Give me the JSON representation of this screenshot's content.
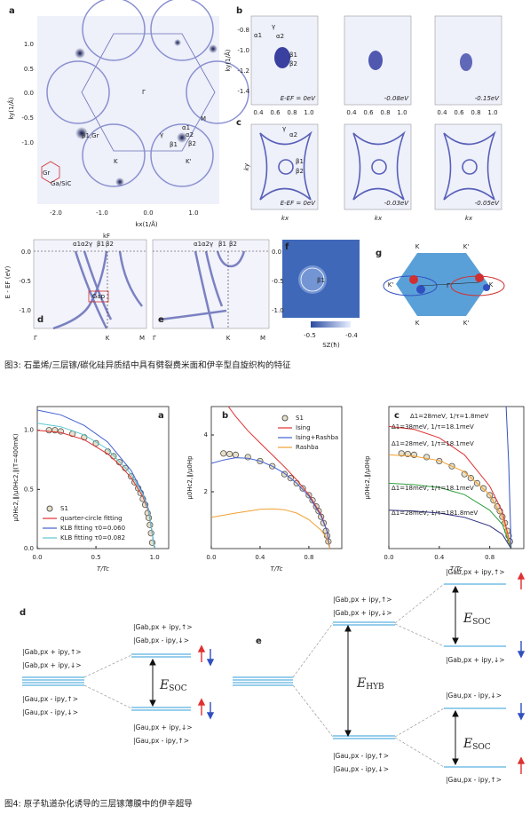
{
  "figure3": {
    "panel_a": {
      "label": "a",
      "ylabel": "ky(1/Å)",
      "xlabel": "kx(1/Å)",
      "yticks": [
        "1.0",
        "0.5",
        "0.0",
        "-0.5",
        "-1.0"
      ],
      "xticks": [
        "-2.0",
        "-1.0",
        "0.0",
        "1.0"
      ],
      "annotations": [
        "Γ",
        "M",
        "K",
        "K'",
        "α1",
        "α2",
        "γ",
        "β1",
        "β2",
        "β1,Gr",
        "Gr",
        "Ga/SiC"
      ]
    },
    "panel_b": {
      "label": "b",
      "ylabel": "ky(1/Å)",
      "yticks": [
        "-0.8",
        "-1.0",
        "-1.2",
        "-1.4"
      ],
      "xticks": [
        "0.4",
        "0.6",
        "0.8",
        "1.0"
      ],
      "energies": [
        "E-EF = 0eV",
        "-0.08eV",
        "-0.15eV"
      ],
      "annotations": [
        "γ",
        "α1",
        "α2",
        "β1",
        "β2"
      ]
    },
    "panel_c": {
      "label": "c",
      "ylabel": "ky",
      "xlabel": "kx",
      "energies": [
        "E-EF = 0eV",
        "-0.03eV",
        "-0.05eV"
      ],
      "annotations": [
        "γ",
        "α2",
        "β1",
        "β2"
      ]
    },
    "panel_d": {
      "label": "d",
      "ylabel": "E - EF (eV)",
      "yticks": [
        "0.0",
        "-0.5",
        "-1.0"
      ],
      "xticks": [
        "Γ",
        "K",
        "M"
      ],
      "kf": "kF",
      "bands": [
        "α1",
        "α2",
        "γ",
        "β1",
        "β2"
      ],
      "gap": "Gap"
    },
    "panel_e": {
      "label": "e",
      "yticks": [
        "0.0",
        "-0.5",
        "-1.0"
      ],
      "xticks": [
        "Γ",
        "K",
        "M"
      ],
      "bands": [
        "α1",
        "α2",
        "γ",
        "β1",
        "β2"
      ]
    },
    "panel_f": {
      "label": "f",
      "annotation": "β1",
      "colorbar_ticks": [
        "-0.5",
        "-0.4"
      ],
      "colorbar_label": "SZ(ħ)"
    },
    "panel_g": {
      "label": "g",
      "points": [
        "K",
        "K'",
        "K'",
        "Γ",
        "K",
        "K",
        "K'"
      ]
    },
    "caption": "图3: 石墨烯/三层镓/碳化硅异质结中具有劈裂费米面和伊辛型自旋织构的特征"
  },
  "figure4": {
    "charts": [
      {
        "type": "line",
        "label": "a",
        "xlabel": "T/Tc",
        "ylabel": "μ0Hc2,∥/μ0Hc2,∥(T=400mK)",
        "xlim": [
          0,
          1.12
        ],
        "ylim": [
          0,
          1.2
        ],
        "xticks": [
          {
            "value": 0,
            "label": "0.0"
          },
          0.5,
          {
            "value": 1,
            "label": "1.0"
          }
        ],
        "yticks": [
          {
            "value": 0,
            "label": "0.0"
          },
          0.5,
          {
            "value": 1,
            "label": "1.0"
          }
        ],
        "legend": "lower left",
        "series": [
          {
            "name": "S1",
            "color": "#555555",
            "marker": "circle",
            "x": [
              0.1,
              0.15,
              0.2,
              0.3,
              0.4,
              0.5,
              0.6,
              0.65,
              0.7,
              0.75,
              0.8,
              0.83,
              0.86,
              0.88,
              0.9,
              0.92,
              0.94,
              0.95,
              0.96,
              0.97,
              0.98
            ],
            "values": [
              1.0,
              1.0,
              0.99,
              0.97,
              0.94,
              0.89,
              0.82,
              0.78,
              0.73,
              0.68,
              0.61,
              0.56,
              0.51,
              0.47,
              0.42,
              0.37,
              0.3,
              0.26,
              0.2,
              0.13,
              0.05
            ]
          },
          {
            "name": "quarter-circle fitting",
            "color": "#e03030",
            "x": [
              0,
              0.2,
              0.4,
              0.6,
              0.7,
              0.8,
              0.9,
              0.95,
              1.0
            ],
            "values": [
              1.0,
              0.98,
              0.92,
              0.8,
              0.71,
              0.6,
              0.44,
              0.31,
              0
            ]
          },
          {
            "name": "KLB fitting τ0=0.060",
            "color": "#4060d0",
            "x": [
              0,
              0.2,
              0.4,
              0.6,
              0.8,
              0.9,
              0.95,
              1.0
            ],
            "values": [
              1.17,
              1.13,
              1.04,
              0.9,
              0.66,
              0.47,
              0.33,
              0
            ]
          },
          {
            "name": "KLB fitting τ0=0.082",
            "color": "#5cc8d0",
            "x": [
              0,
              0.2,
              0.4,
              0.6,
              0.8,
              0.9,
              0.95,
              1.0
            ],
            "values": [
              1.06,
              1.03,
              0.96,
              0.84,
              0.63,
              0.46,
              0.32,
              0
            ]
          }
        ]
      },
      {
        "type": "line",
        "label": "b",
        "xlabel": "T/Tc",
        "ylabel": "μ0Hc2,∥/μ0Hp",
        "xlim": [
          0,
          1.07
        ],
        "ylim": [
          0,
          5
        ],
        "xticks": [
          {
            "value": 0,
            "label": "0.0"
          },
          0.4,
          0.8
        ],
        "yticks": [
          2,
          4
        ],
        "legend": "upper right",
        "series": [
          {
            "name": "S1",
            "color": "#555555",
            "marker": "circle",
            "x": [
              0.1,
              0.15,
              0.2,
              0.3,
              0.4,
              0.5,
              0.6,
              0.65,
              0.7,
              0.75,
              0.8,
              0.83,
              0.86,
              0.88,
              0.9,
              0.92,
              0.94,
              0.95,
              0.96
            ],
            "values": [
              3.35,
              3.33,
              3.3,
              3.22,
              3.08,
              2.9,
              2.62,
              2.48,
              2.3,
              2.12,
              1.88,
              1.7,
              1.48,
              1.32,
              1.12,
              0.9,
              0.62,
              0.45,
              0.25
            ]
          },
          {
            "name": "Ising",
            "color": "#e03030",
            "x": [
              0.14,
              0.2,
              0.3,
              0.4,
              0.5,
              0.6,
              0.7,
              0.8,
              0.9,
              0.95,
              0.97
            ],
            "values": [
              5.0,
              4.65,
              4.15,
              3.72,
              3.3,
              2.88,
              2.42,
              1.9,
              1.2,
              0.6,
              0
            ]
          },
          {
            "name": "Ising+Rashba",
            "color": "#4060d0",
            "x": [
              0,
              0.1,
              0.2,
              0.3,
              0.4,
              0.5,
              0.6,
              0.7,
              0.8,
              0.9,
              0.95,
              0.97
            ],
            "values": [
              3.0,
              3.12,
              3.2,
              3.18,
              3.08,
              2.9,
              2.65,
              2.3,
              1.85,
              1.15,
              0.6,
              0
            ]
          },
          {
            "name": "Rashba",
            "color": "#f0a030",
            "x": [
              0,
              0.2,
              0.4,
              0.5,
              0.6,
              0.7,
              0.8,
              0.9,
              0.95,
              0.97
            ],
            "values": [
              1.1,
              1.25,
              1.38,
              1.4,
              1.37,
              1.25,
              1.02,
              0.65,
              0.35,
              0
            ]
          }
        ]
      },
      {
        "type": "line",
        "label": "c",
        "xlabel": "T/Tc",
        "ylabel": "μ0Hc2,∥/μ0Hp",
        "xlim": [
          0,
          1.07
        ],
        "ylim": [
          0,
          5
        ],
        "xticks": [
          {
            "value": 0,
            "label": "0.0"
          },
          0.4,
          0.8
        ],
        "series": [
          {
            "color": "#555555",
            "marker": "circle",
            "x": [
              0.1,
              0.15,
              0.2,
              0.3,
              0.4,
              0.5,
              0.6,
              0.65,
              0.7,
              0.75,
              0.8,
              0.83,
              0.86,
              0.88,
              0.9,
              0.92,
              0.94,
              0.95,
              0.96
            ],
            "values": [
              3.35,
              3.33,
              3.3,
              3.22,
              3.08,
              2.9,
              2.62,
              2.48,
              2.3,
              2.12,
              1.88,
              1.7,
              1.48,
              1.32,
              1.12,
              0.9,
              0.62,
              0.45,
              0.25
            ]
          },
          {
            "name": "Δ1=28meV, 1/τ=1.8meV",
            "color": "#3050c0",
            "x": [
              0.93,
              0.95,
              0.96,
              0.97
            ],
            "values": [
              5.0,
              3.0,
              1.5,
              0
            ]
          },
          {
            "name": "Δ1=38meV, 1/τ=18.1meV",
            "color": "#e03030",
            "x": [
              0,
              0.2,
              0.4,
              0.6,
              0.8,
              0.9,
              0.97
            ],
            "values": [
              4.3,
              4.2,
              3.9,
              3.3,
              2.2,
              1.3,
              0
            ]
          },
          {
            "name": "Δ1=28meV, 1/τ=18.1meV",
            "color": "#f0a030",
            "x": [
              0,
              0.2,
              0.4,
              0.6,
              0.8,
              0.9,
              0.97
            ],
            "values": [
              3.3,
              3.25,
              3.1,
              2.7,
              1.9,
              1.1,
              0
            ]
          },
          {
            "name": "Δ1=18meV, 1/τ=18.1meV",
            "color": "#30a040",
            "x": [
              0,
              0.2,
              0.4,
              0.6,
              0.8,
              0.9,
              0.97
            ],
            "values": [
              2.3,
              2.25,
              2.15,
              1.9,
              1.35,
              0.85,
              0
            ]
          },
          {
            "name": "Δ1=28meV, 1/τ=181.8meV",
            "color": "#2a2a80",
            "x": [
              0,
              0.2,
              0.4,
              0.6,
              0.8,
              0.9,
              0.97
            ],
            "values": [
              1.35,
              1.32,
              1.25,
              1.1,
              0.8,
              0.5,
              0
            ]
          }
        ]
      }
    ],
    "diagram_d": {
      "label": "d",
      "left": [
        "|Gab,px + ipy,↑>",
        "|Gab,px + ipy,↓>",
        "|Gau,px - ipy,↑>",
        "|Gau,px - ipy,↓>"
      ],
      "right_top": [
        "|Gab,px + ipy,↑>",
        "|Gab,px - ipy,↓>"
      ],
      "right_bottom": [
        "|Gau,px + ipy,↓>",
        "|Gau,px - ipy,↑>"
      ],
      "gap": {
        "symbol": "E",
        "subscript": "SOC"
      }
    },
    "diagram_e": {
      "label": "e",
      "mid_top": [
        "|Gab,px + ipy,↑>",
        "|Gab,px + ipy,↓>"
      ],
      "mid_bottom": [
        "|Gau,px - ipy,↑>",
        "|Gau,px - ipy,↓>"
      ],
      "right_top": [
        "|Gab,px + ipy,↑>",
        "|Gab,px + ipy,↓>"
      ],
      "right_bottom": [
        "|Gau,px - ipy,↓>",
        "|Gau,px - ipy,↑>"
      ],
      "hyb": {
        "symbol": "E",
        "subscript": "HYB"
      },
      "soc": {
        "symbol": "E",
        "subscript": "SOC"
      }
    },
    "caption": "图4: 原子轨道杂化诱导的三层镓薄膜中的伊辛超导"
  }
}
